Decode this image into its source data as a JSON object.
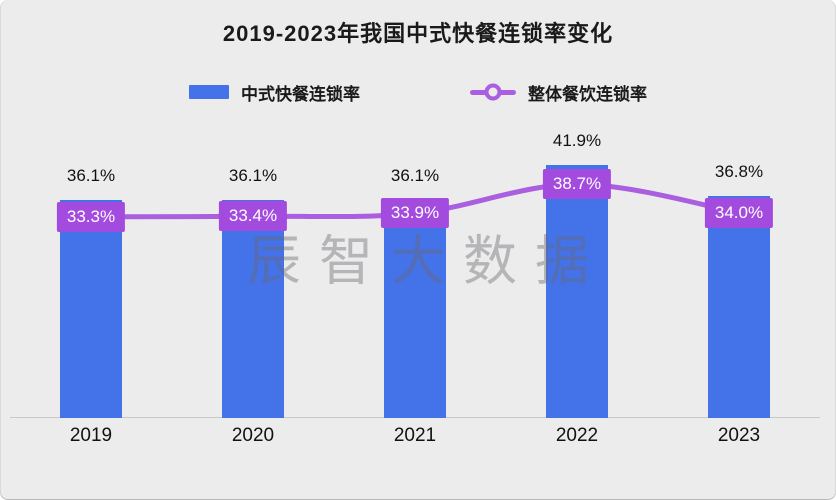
{
  "title": "2019-2023年我国中式快餐连锁率变化",
  "legend": {
    "bar_label": "中式快餐连锁率",
    "line_label": "整体餐饮连锁率"
  },
  "watermark": "辰智大数据",
  "colors": {
    "bar": "#4472E8",
    "line": "#A95FE0",
    "point_label_bg": "#A44BDF",
    "background": "#ECECEC",
    "axis": "#C8C8C8",
    "text": "#1A1A1A"
  },
  "chart_data": {
    "type": "combo",
    "categories": [
      "2019",
      "2020",
      "2021",
      "2022",
      "2023"
    ],
    "series": [
      {
        "name": "中式快餐连锁率",
        "type": "bar",
        "color": "#4472E8",
        "values": [
          36.1,
          36.1,
          36.1,
          41.9,
          36.8
        ],
        "labels": [
          "36.1%",
          "36.1%",
          "36.1%",
          "41.9%",
          "36.8%"
        ]
      },
      {
        "name": "整体餐饮连锁率",
        "type": "line",
        "smooth": true,
        "color": "#A95FE0",
        "values": [
          33.3,
          33.4,
          33.9,
          38.7,
          34.0
        ],
        "labels": [
          "33.3%",
          "33.4%",
          "33.9%",
          "38.7%",
          "34.0%"
        ]
      }
    ],
    "unit": "%",
    "value_axis_visible": false,
    "grid": false,
    "legend_position": "top",
    "ylim": [
      0,
      46
    ]
  }
}
